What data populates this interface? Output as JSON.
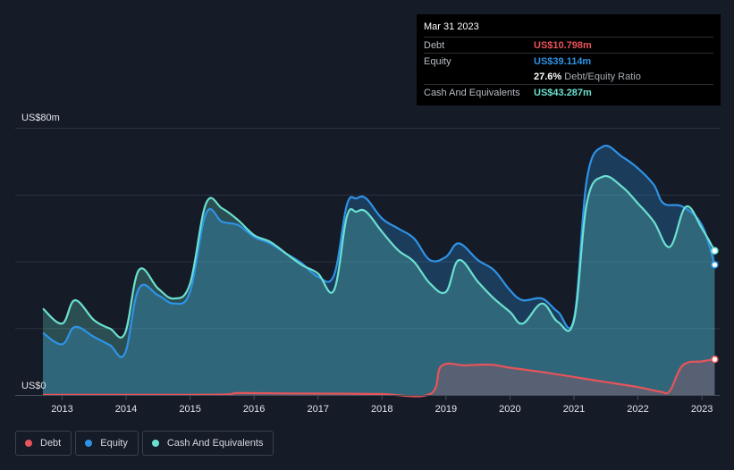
{
  "tooltip": {
    "date": "Mar 31 2023",
    "rows": [
      {
        "label": "Debt",
        "value": "US$10.798m",
        "color": "#e8545a"
      },
      {
        "label": "Equity",
        "value": "US$39.114m",
        "color": "#2e93e6"
      },
      {
        "label": "",
        "value": "27.6%",
        "suffix": " Debt/Equity Ratio",
        "color": "#ffffff"
      },
      {
        "label": "Cash And Equivalents",
        "value": "US$43.287m",
        "color": "#6be0d0"
      }
    ]
  },
  "legend": [
    {
      "label": "Debt",
      "color": "#e8545a"
    },
    {
      "label": "Equity",
      "color": "#2e93e6"
    },
    {
      "label": "Cash And Equivalents",
      "color": "#6be0d0"
    }
  ],
  "chart_data": {
    "type": "area",
    "title": "",
    "xlabel": "",
    "ylabel": "",
    "y_axis_top_label": "US$80m",
    "y_axis_bottom_label": "US$0",
    "ylim": [
      0,
      80
    ],
    "xlim": [
      2012.7,
      2023.25
    ],
    "x_ticks": [
      "2013",
      "2014",
      "2015",
      "2016",
      "2017",
      "2018",
      "2019",
      "2020",
      "2021",
      "2022",
      "2023"
    ],
    "series": [
      {
        "name": "Debt",
        "color": "#e8545a",
        "points": [
          [
            2012.7,
            0.2
          ],
          [
            2015.0,
            0.2
          ],
          [
            2015.6,
            0.3
          ],
          [
            2015.75,
            0.7
          ],
          [
            2016.5,
            0.6
          ],
          [
            2017.5,
            0.5
          ],
          [
            2018.0,
            0.4
          ],
          [
            2018.75,
            0.4
          ],
          [
            2018.93,
            8.8
          ],
          [
            2019.3,
            9.0
          ],
          [
            2019.7,
            9.2
          ],
          [
            2020.0,
            8.3
          ],
          [
            2020.5,
            7.0
          ],
          [
            2021.0,
            5.5
          ],
          [
            2021.5,
            4.0
          ],
          [
            2022.0,
            2.5
          ],
          [
            2022.35,
            1.1
          ],
          [
            2022.5,
            1.4
          ],
          [
            2022.7,
            9.0
          ],
          [
            2023.0,
            10.2
          ],
          [
            2023.2,
            10.8
          ]
        ]
      },
      {
        "name": "Equity",
        "color": "#2e93e6",
        "points": [
          [
            2012.7,
            18.7
          ],
          [
            2013.0,
            15.3
          ],
          [
            2013.2,
            20.5
          ],
          [
            2013.5,
            17.5
          ],
          [
            2013.75,
            15.0
          ],
          [
            2013.98,
            12.5
          ],
          [
            2014.2,
            32.0
          ],
          [
            2014.5,
            30.0
          ],
          [
            2014.75,
            27.5
          ],
          [
            2015.0,
            31.0
          ],
          [
            2015.25,
            54.5
          ],
          [
            2015.5,
            52.0
          ],
          [
            2015.75,
            51.0
          ],
          [
            2016.0,
            47.5
          ],
          [
            2016.25,
            45.5
          ],
          [
            2016.5,
            42.5
          ],
          [
            2016.75,
            39.5
          ],
          [
            2017.0,
            35.5
          ],
          [
            2017.25,
            36.0
          ],
          [
            2017.45,
            57.0
          ],
          [
            2017.6,
            59.0
          ],
          [
            2017.75,
            59.0
          ],
          [
            2018.0,
            53.0
          ],
          [
            2018.25,
            50.0
          ],
          [
            2018.5,
            47.0
          ],
          [
            2018.75,
            40.5
          ],
          [
            2019.0,
            41.5
          ],
          [
            2019.2,
            45.5
          ],
          [
            2019.5,
            40.5
          ],
          [
            2019.75,
            37.5
          ],
          [
            2020.0,
            31.5
          ],
          [
            2020.2,
            28.5
          ],
          [
            2020.5,
            29.0
          ],
          [
            2020.75,
            25.0
          ],
          [
            2021.0,
            23.0
          ],
          [
            2021.2,
            64.5
          ],
          [
            2021.45,
            74.5
          ],
          [
            2021.75,
            71.5
          ],
          [
            2022.0,
            68.0
          ],
          [
            2022.25,
            63.0
          ],
          [
            2022.4,
            57.5
          ],
          [
            2022.7,
            56.5
          ],
          [
            2023.0,
            51.0
          ],
          [
            2023.2,
            39.1
          ]
        ]
      },
      {
        "name": "Cash And Equivalents",
        "color": "#6be0d0",
        "points": [
          [
            2012.7,
            26.0
          ],
          [
            2013.0,
            21.5
          ],
          [
            2013.2,
            28.5
          ],
          [
            2013.5,
            22.5
          ],
          [
            2013.75,
            20.0
          ],
          [
            2013.98,
            18.5
          ],
          [
            2014.2,
            37.5
          ],
          [
            2014.5,
            32.0
          ],
          [
            2014.75,
            29.0
          ],
          [
            2015.0,
            33.5
          ],
          [
            2015.25,
            57.5
          ],
          [
            2015.5,
            56.0
          ],
          [
            2015.75,
            52.5
          ],
          [
            2016.0,
            48.0
          ],
          [
            2016.25,
            46.0
          ],
          [
            2016.5,
            42.5
          ],
          [
            2016.75,
            39.0
          ],
          [
            2017.0,
            36.5
          ],
          [
            2017.25,
            31.5
          ],
          [
            2017.45,
            53.5
          ],
          [
            2017.6,
            55.0
          ],
          [
            2017.75,
            55.0
          ],
          [
            2018.0,
            49.0
          ],
          [
            2018.25,
            43.5
          ],
          [
            2018.5,
            40.0
          ],
          [
            2018.75,
            33.5
          ],
          [
            2019.0,
            31.0
          ],
          [
            2019.2,
            40.5
          ],
          [
            2019.5,
            34.0
          ],
          [
            2019.75,
            29.0
          ],
          [
            2020.0,
            25.0
          ],
          [
            2020.2,
            21.5
          ],
          [
            2020.5,
            27.5
          ],
          [
            2020.75,
            22.0
          ],
          [
            2021.0,
            22.5
          ],
          [
            2021.2,
            57.5
          ],
          [
            2021.45,
            65.5
          ],
          [
            2021.75,
            62.5
          ],
          [
            2022.0,
            57.5
          ],
          [
            2022.25,
            52.0
          ],
          [
            2022.5,
            44.5
          ],
          [
            2022.75,
            56.5
          ],
          [
            2023.0,
            50.0
          ],
          [
            2023.2,
            43.3
          ]
        ]
      }
    ]
  }
}
